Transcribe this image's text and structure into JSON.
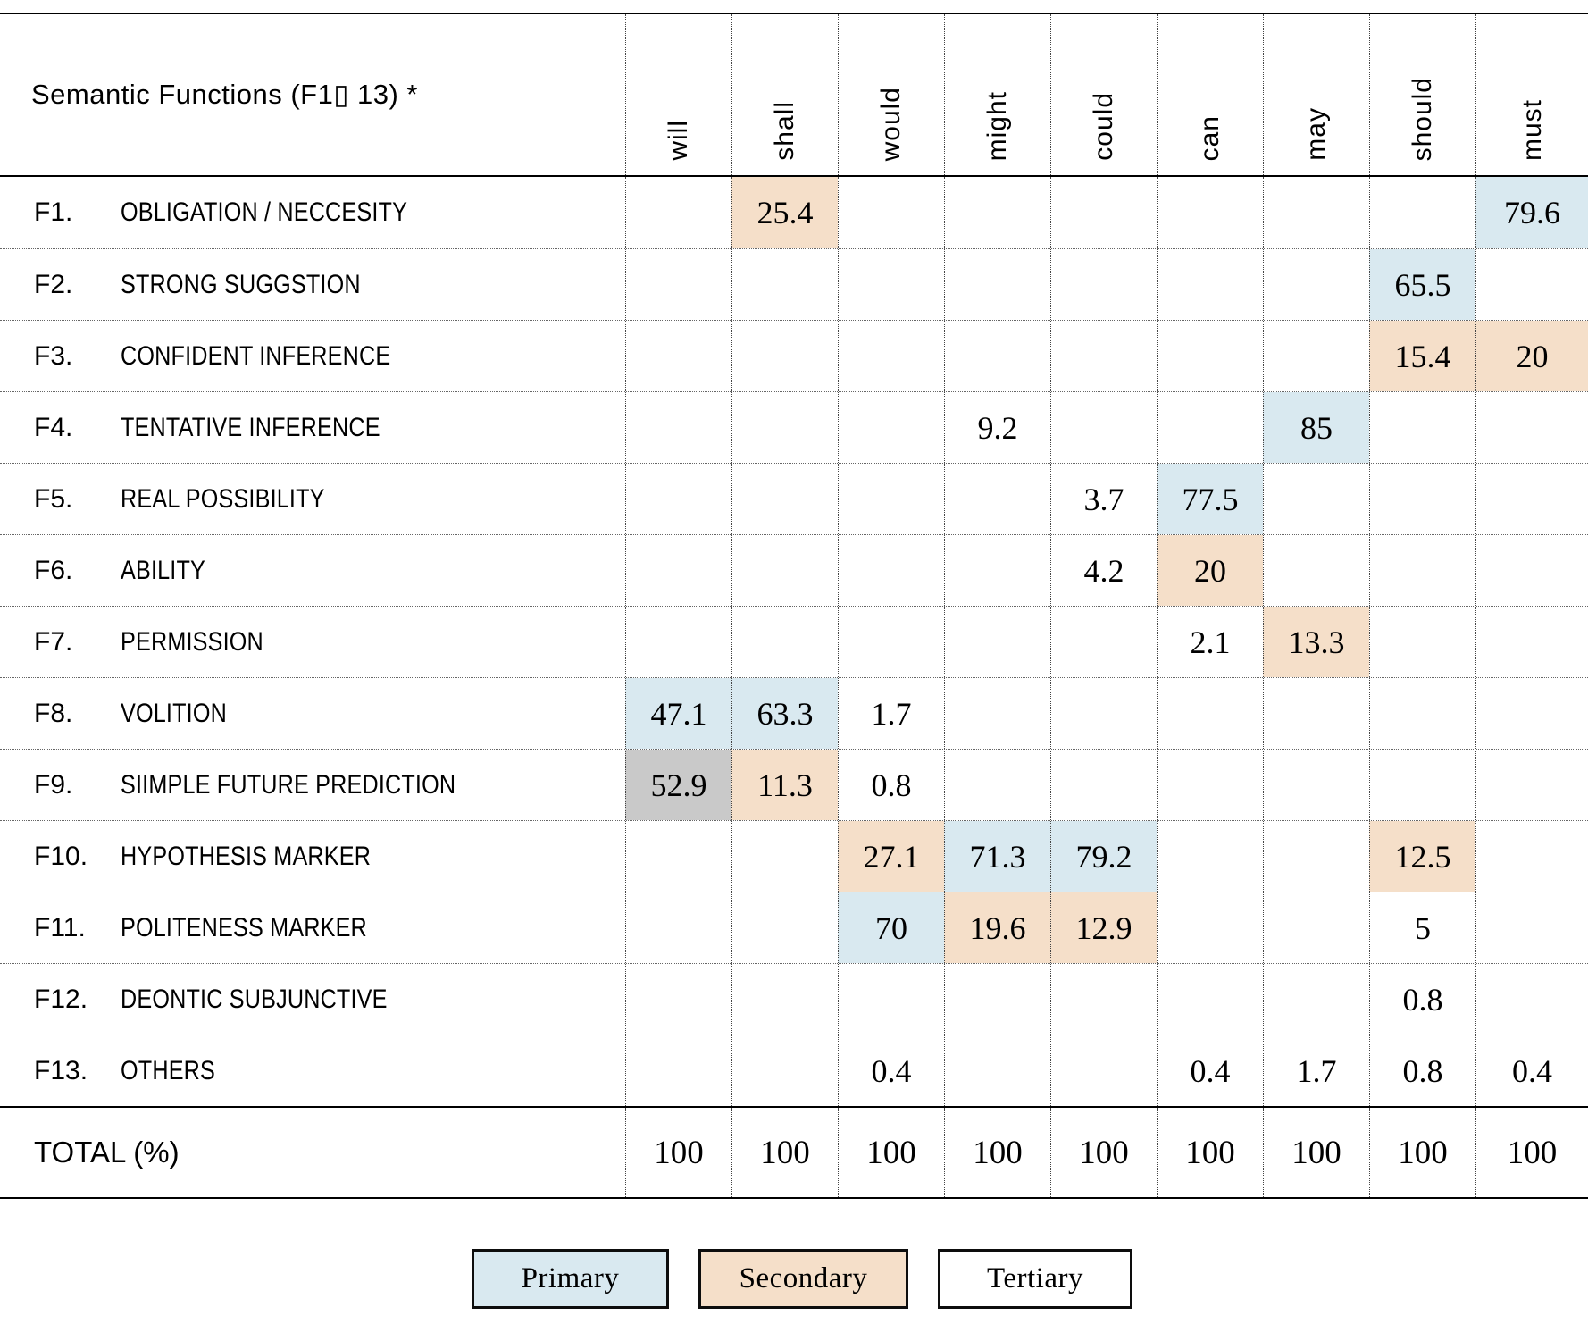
{
  "chart_data": {
    "type": "table",
    "title": "Semantic Functions (F1▯ 13) *",
    "columns": [
      "will",
      "shall",
      "would",
      "might",
      "could",
      "can",
      "may",
      "should",
      "must"
    ],
    "rows": [
      {
        "code": "F1.",
        "label": "OBLIGATION / NECCESITY",
        "cells": [
          null,
          {
            "value": "25.4",
            "tier": "secondary"
          },
          null,
          null,
          null,
          null,
          null,
          null,
          {
            "value": "79.6",
            "tier": "primary"
          }
        ]
      },
      {
        "code": "F2.",
        "label": "STRONG SUGGSTION",
        "cells": [
          null,
          null,
          null,
          null,
          null,
          null,
          null,
          {
            "value": "65.5",
            "tier": "primary"
          },
          null
        ]
      },
      {
        "code": "F3.",
        "label": "CONFIDENT INFERENCE",
        "cells": [
          null,
          null,
          null,
          null,
          null,
          null,
          null,
          {
            "value": "15.4",
            "tier": "secondary"
          },
          {
            "value": "20",
            "tier": "secondary"
          }
        ]
      },
      {
        "code": "F4.",
        "label": "TENTATIVE INFERENCE",
        "cells": [
          null,
          null,
          null,
          {
            "value": "9.2",
            "tier": "tertiary"
          },
          null,
          null,
          {
            "value": "85",
            "tier": "primary"
          },
          null,
          null
        ]
      },
      {
        "code": "F5.",
        "label": "REAL POSSIBILITY",
        "cells": [
          null,
          null,
          null,
          null,
          {
            "value": "3.7",
            "tier": "tertiary"
          },
          {
            "value": "77.5",
            "tier": "primary"
          },
          null,
          null,
          null
        ]
      },
      {
        "code": "F6.",
        "label": "ABILITY",
        "cells": [
          null,
          null,
          null,
          null,
          {
            "value": "4.2",
            "tier": "tertiary"
          },
          {
            "value": "20",
            "tier": "secondary"
          },
          null,
          null,
          null
        ]
      },
      {
        "code": "F7.",
        "label": "PERMISSION",
        "cells": [
          null,
          null,
          null,
          null,
          null,
          {
            "value": "2.1",
            "tier": "tertiary"
          },
          {
            "value": "13.3",
            "tier": "secondary"
          },
          null,
          null
        ]
      },
      {
        "code": "F8.",
        "label": "VOLITION",
        "cells": [
          {
            "value": "47.1",
            "tier": "primary"
          },
          {
            "value": "63.3",
            "tier": "primary"
          },
          {
            "value": "1.7",
            "tier": "tertiary"
          },
          null,
          null,
          null,
          null,
          null,
          null
        ]
      },
      {
        "code": "F9.",
        "label": "SIIMPLE FUTURE PREDICTION",
        "cells": [
          {
            "value": "52.9",
            "tier": "gray"
          },
          {
            "value": "11.3",
            "tier": "secondary"
          },
          {
            "value": "0.8",
            "tier": "tertiary"
          },
          null,
          null,
          null,
          null,
          null,
          null
        ]
      },
      {
        "code": "F10.",
        "label": "HYPOTHESIS MARKER",
        "cells": [
          null,
          null,
          {
            "value": "27.1",
            "tier": "secondary"
          },
          {
            "value": "71.3",
            "tier": "primary"
          },
          {
            "value": "79.2",
            "tier": "primary"
          },
          null,
          null,
          {
            "value": "12.5",
            "tier": "secondary"
          },
          null
        ]
      },
      {
        "code": "F11.",
        "label": "POLITENESS MARKER",
        "cells": [
          null,
          null,
          {
            "value": "70",
            "tier": "primary"
          },
          {
            "value": "19.6",
            "tier": "secondary"
          },
          {
            "value": "12.9",
            "tier": "secondary"
          },
          null,
          null,
          {
            "value": "5",
            "tier": "tertiary"
          },
          null
        ]
      },
      {
        "code": "F12.",
        "label": "DEONTIC SUBJUNCTIVE",
        "cells": [
          null,
          null,
          null,
          null,
          null,
          null,
          null,
          {
            "value": "0.8",
            "tier": "tertiary"
          },
          null
        ]
      },
      {
        "code": "F13.",
        "label": "OTHERS",
        "cells": [
          null,
          null,
          {
            "value": "0.4",
            "tier": "tertiary"
          },
          null,
          null,
          {
            "value": "0.4",
            "tier": "tertiary"
          },
          {
            "value": "1.7",
            "tier": "tertiary"
          },
          {
            "value": "0.8",
            "tier": "tertiary"
          },
          {
            "value": "0.4",
            "tier": "tertiary"
          }
        ]
      }
    ],
    "total": {
      "label": "TOTAL (%)",
      "values": [
        "100",
        "100",
        "100",
        "100",
        "100",
        "100",
        "100",
        "100",
        "100"
      ]
    },
    "legend_items": [
      {
        "label": "Primary",
        "tier": "primary"
      },
      {
        "label": "Secondary",
        "tier": "secondary"
      },
      {
        "label": "Tertiary",
        "tier": "tertiary"
      }
    ],
    "tier_colors": {
      "primary": "#d9e9f0",
      "secondary": "#f5dfc9",
      "tertiary": "#ffffff",
      "gray": "#c9c9c9"
    },
    "grid_colors": {
      "solid_border": "#000000",
      "dotted_line": "#444444"
    }
  }
}
